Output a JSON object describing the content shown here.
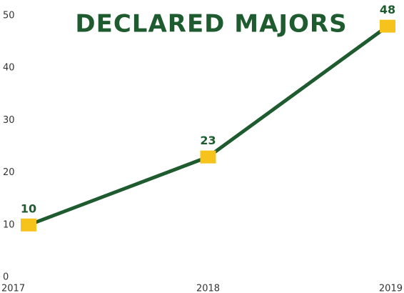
{
  "chart_data": {
    "type": "line",
    "title": "DECLARED MAJORS",
    "x": [
      2017,
      2018,
      2019
    ],
    "xlim": [
      2017,
      2019
    ],
    "xticks": [
      2017,
      2018,
      2019
    ],
    "series": [
      {
        "name": null,
        "color": "#1e5b2f",
        "marker_color": "#f5c31c",
        "values": [
          10,
          23,
          48
        ]
      }
    ],
    "ylim": [
      0,
      50
    ],
    "yticks": [
      0,
      10,
      20,
      30,
      40,
      50
    ],
    "grid": false,
    "data_labels": true
  }
}
